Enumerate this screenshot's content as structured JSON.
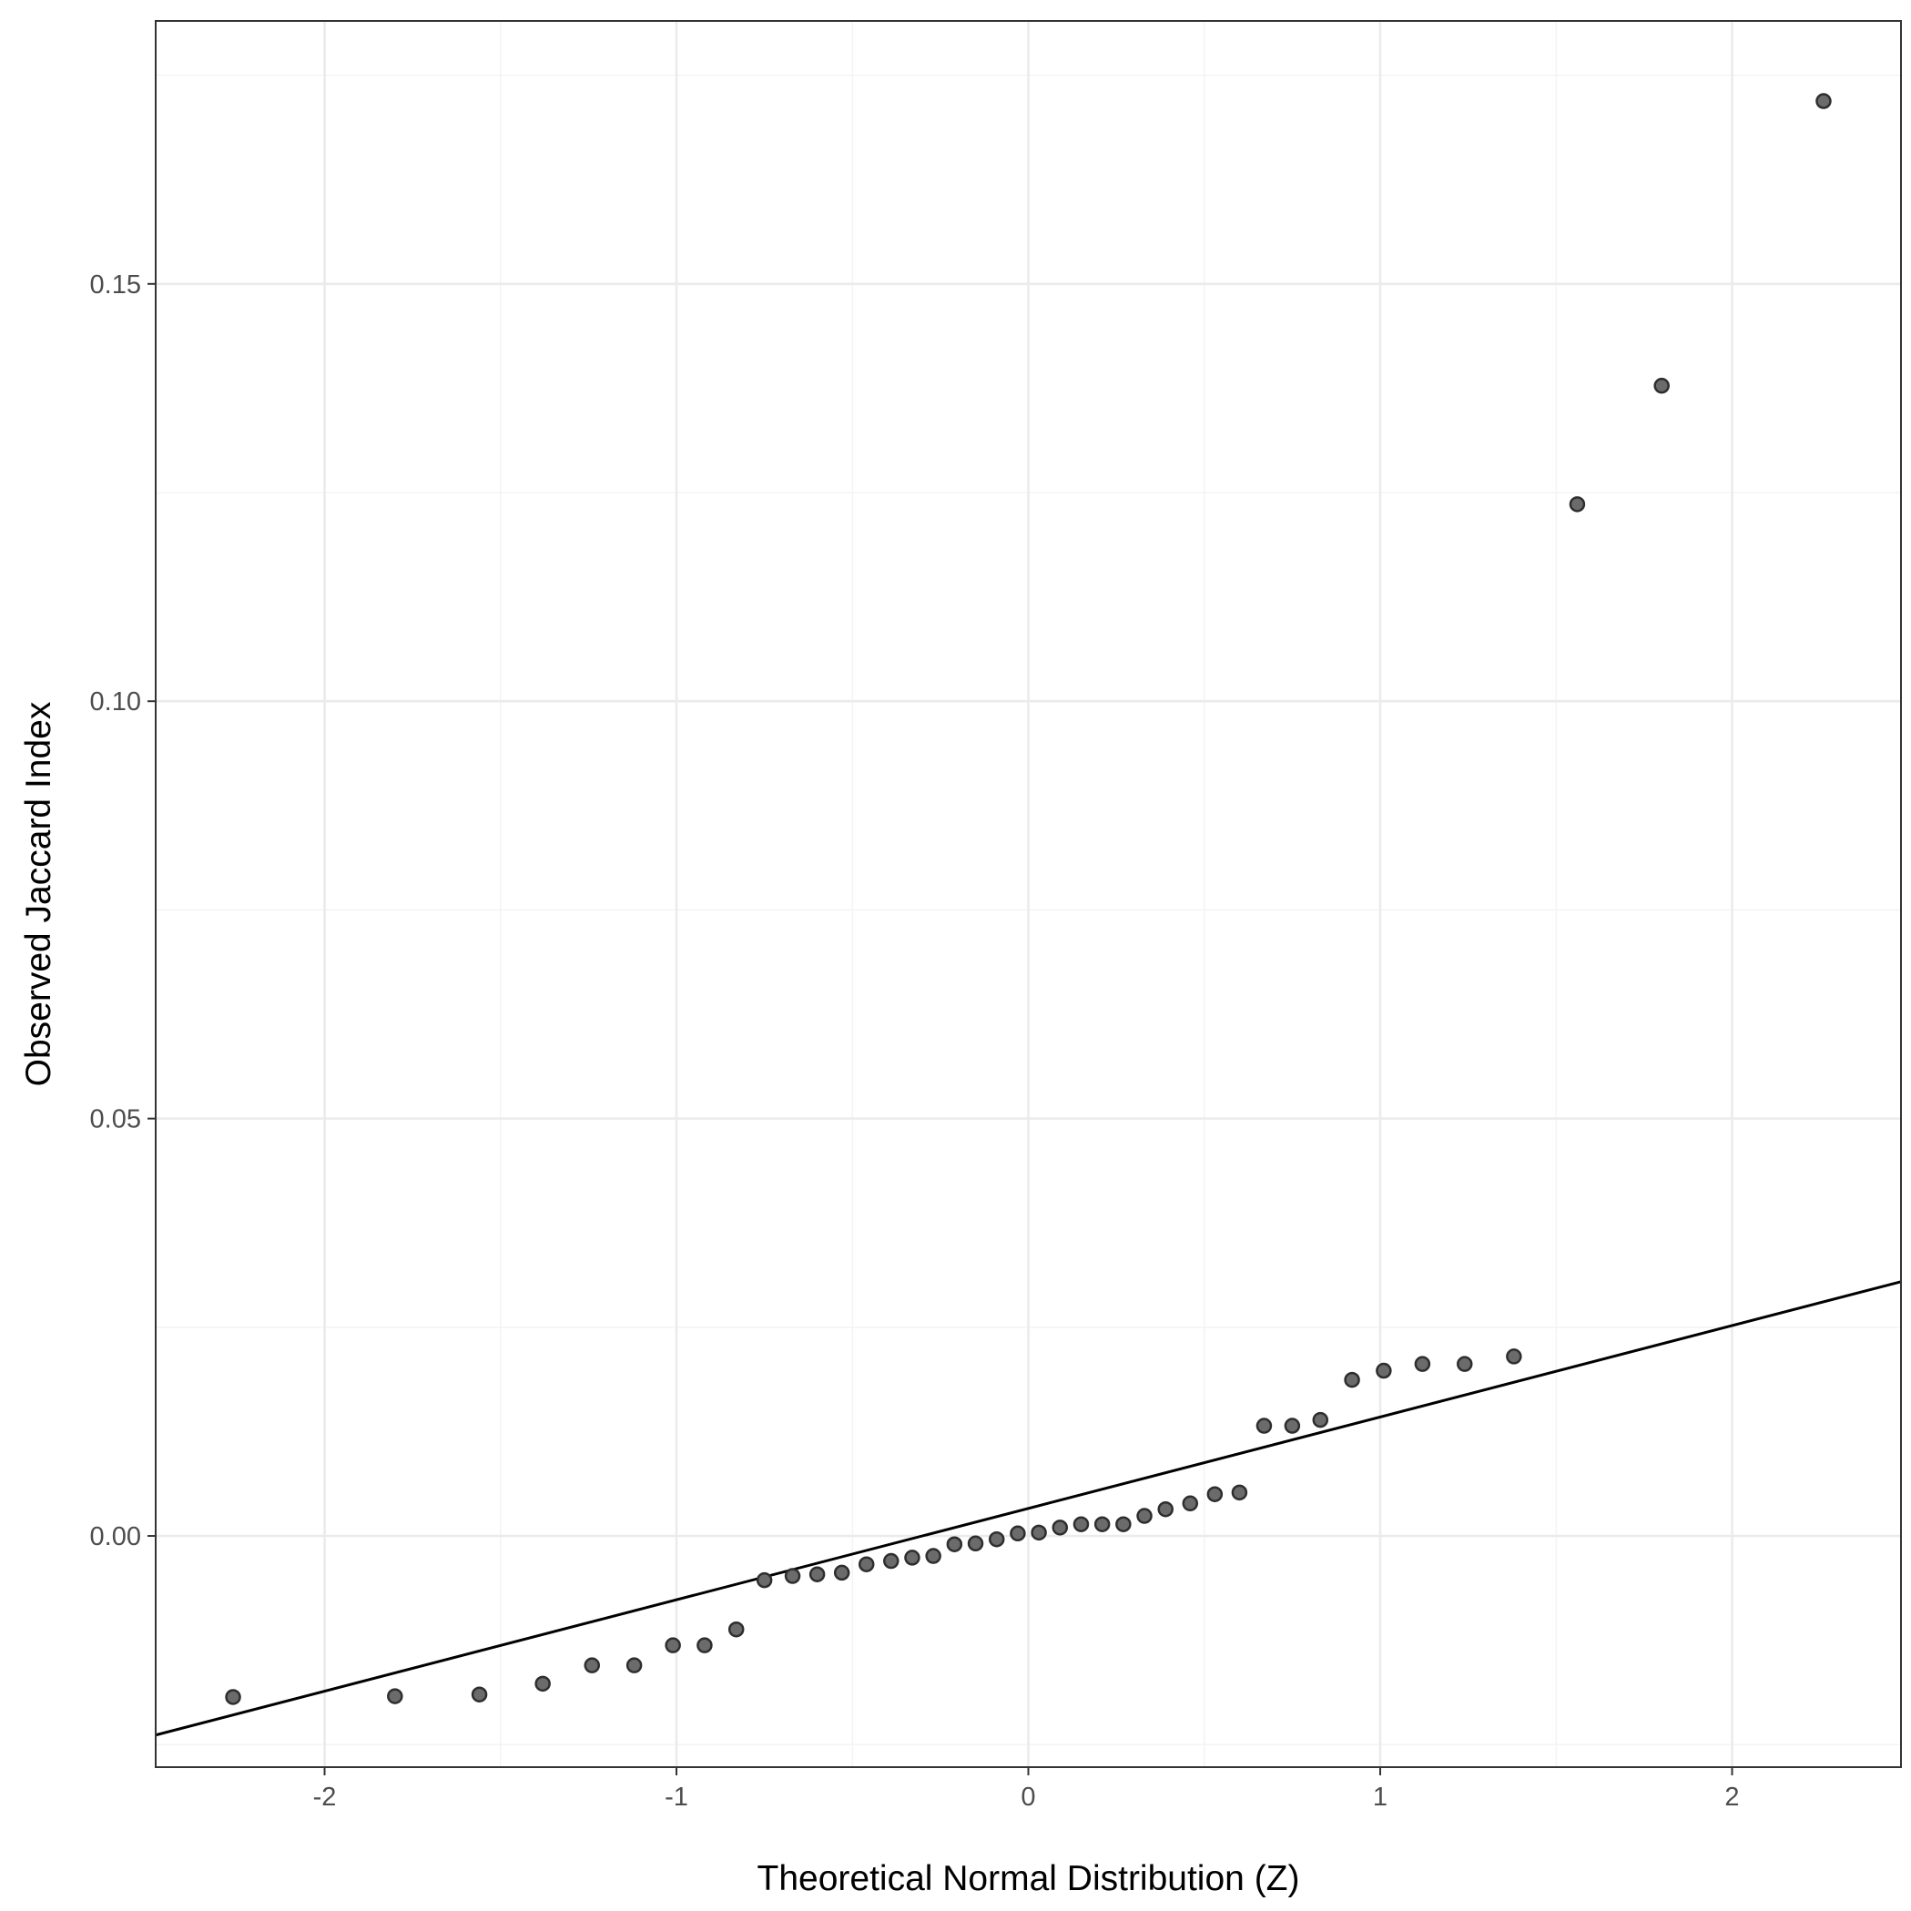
{
  "chart_data": {
    "type": "scatter",
    "xlabel": "Theoretical Normal Distribution (Z)",
    "ylabel": "Observed Jaccard Index",
    "xlim": [
      -2.48,
      2.48
    ],
    "ylim": [
      -0.0277,
      0.1815
    ],
    "x_ticks": [
      -2,
      -1,
      0,
      1,
      2
    ],
    "x_tick_labels": [
      "-2",
      "-1",
      "0",
      "1",
      "2"
    ],
    "y_ticks": [
      0,
      0.05,
      0.1,
      0.15
    ],
    "y_tick_labels": [
      "0.00",
      "0.05",
      "0.10",
      "0.15"
    ],
    "x_minor_ticks": [
      -1.5,
      -0.5,
      0.5,
      1.5
    ],
    "y_minor_ticks": [
      -0.025,
      0.025,
      0.075,
      0.125,
      0.175
    ],
    "grid": true,
    "reference_line": {
      "slope": 0.01095,
      "intercept": 0.0033
    },
    "points": [
      {
        "x": -2.26,
        "y": -0.0193
      },
      {
        "x": -1.8,
        "y": -0.0192
      },
      {
        "x": -1.56,
        "y": -0.019
      },
      {
        "x": -1.38,
        "y": -0.0177
      },
      {
        "x": -1.24,
        "y": -0.0155
      },
      {
        "x": -1.12,
        "y": -0.0155
      },
      {
        "x": -1.01,
        "y": -0.0131
      },
      {
        "x": -0.92,
        "y": -0.0131
      },
      {
        "x": -0.83,
        "y": -0.0112
      },
      {
        "x": -0.75,
        "y": -0.0053
      },
      {
        "x": -0.67,
        "y": -0.0048
      },
      {
        "x": -0.6,
        "y": -0.0046
      },
      {
        "x": -0.53,
        "y": -0.0044
      },
      {
        "x": -0.46,
        "y": -0.0034
      },
      {
        "x": -0.39,
        "y": -0.003
      },
      {
        "x": -0.33,
        "y": -0.0026
      },
      {
        "x": -0.27,
        "y": -0.0024
      },
      {
        "x": -0.21,
        "y": -0.001
      },
      {
        "x": -0.15,
        "y": -0.0009
      },
      {
        "x": -0.09,
        "y": -0.0004
      },
      {
        "x": -0.03,
        "y": 0.0003
      },
      {
        "x": 0.03,
        "y": 0.0004
      },
      {
        "x": 0.09,
        "y": 0.001
      },
      {
        "x": 0.15,
        "y": 0.0014
      },
      {
        "x": 0.21,
        "y": 0.0014
      },
      {
        "x": 0.27,
        "y": 0.0014
      },
      {
        "x": 0.33,
        "y": 0.0024
      },
      {
        "x": 0.39,
        "y": 0.0032
      },
      {
        "x": 0.46,
        "y": 0.0039
      },
      {
        "x": 0.53,
        "y": 0.005
      },
      {
        "x": 0.6,
        "y": 0.0052
      },
      {
        "x": 0.67,
        "y": 0.0132
      },
      {
        "x": 0.75,
        "y": 0.0132
      },
      {
        "x": 0.83,
        "y": 0.0139
      },
      {
        "x": 0.92,
        "y": 0.0187
      },
      {
        "x": 1.01,
        "y": 0.0198
      },
      {
        "x": 1.12,
        "y": 0.0206
      },
      {
        "x": 1.24,
        "y": 0.0206
      },
      {
        "x": 1.38,
        "y": 0.0215
      },
      {
        "x": 1.56,
        "y": 0.1236
      },
      {
        "x": 1.8,
        "y": 0.1378
      },
      {
        "x": 2.26,
        "y": 0.1719
      }
    ]
  }
}
